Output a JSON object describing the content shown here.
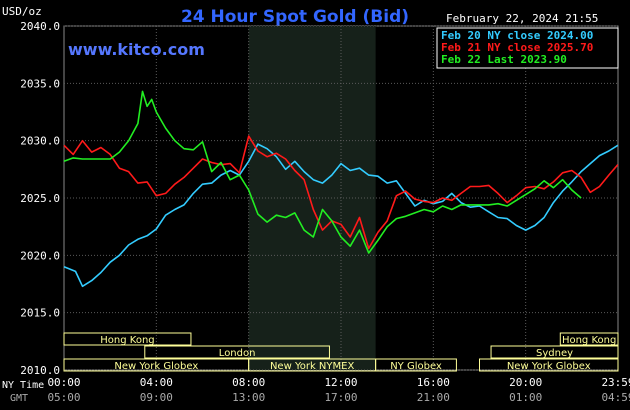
{
  "header": {
    "unit": "USD/oz",
    "title": "24 Hour Spot Gold (Bid)",
    "date": "February 22, 2024 21:55",
    "watermark": "www.kitco.com"
  },
  "legend": [
    {
      "text": "Feb 20 NY close 2024.00",
      "color": "#33ccff"
    },
    {
      "text": "Feb 21 NY close 2025.70",
      "color": "#ff1a1a"
    },
    {
      "text": "Feb 22 Last 2023.90",
      "color": "#22ee22"
    }
  ],
  "bottom_labels": {
    "ny_time": "NY Time",
    "gmt": "GMT"
  },
  "sessions": [
    {
      "label": "Hong Kong",
      "start": 0,
      "end": 5.5,
      "row": 0
    },
    {
      "label": "Hong Kong",
      "start": 21.5,
      "end": 24,
      "row": 0
    },
    {
      "label": "London",
      "start": 3.5,
      "end": 11.5,
      "row": 1
    },
    {
      "label": "Sydney",
      "start": 18.5,
      "end": 24,
      "row": 1
    },
    {
      "label": "New York Globex",
      "start": 0,
      "end": 8,
      "row": 2
    },
    {
      "label": "New York NYMEX",
      "start": 8,
      "end": 13.5,
      "row": 2
    },
    {
      "label": "NY Globex",
      "start": 13.5,
      "end": 17,
      "row": 2
    },
    {
      "label": "New York Globex",
      "start": 18,
      "end": 24,
      "row": 2
    }
  ],
  "chart_data": {
    "type": "line",
    "title": "24 Hour Spot Gold (Bid)",
    "ylabel": "USD/oz",
    "ylim": [
      2010,
      2040
    ],
    "xlim": [
      0,
      24
    ],
    "yticks": [
      2040,
      2035,
      2030,
      2025,
      2020,
      2015,
      2010
    ],
    "ytick_labels": [
      "2040.0",
      "2035.0",
      "2030.0",
      "2025.0",
      "2020.0",
      "2015.0",
      "2010.0"
    ],
    "xticks": [
      0,
      4,
      8,
      12,
      16,
      20,
      24
    ],
    "xtick_labels": [
      "00:00",
      "04:00",
      "08:00",
      "12:00",
      "16:00",
      "20:00",
      "23:59"
    ],
    "gmt_tick_labels": [
      "05:00",
      "09:00",
      "13:00",
      "17:00",
      "21:00",
      "01:00",
      "04:59"
    ],
    "shaded_range": [
      8,
      13.5
    ],
    "grid": true,
    "legend_position": "top-right",
    "series": [
      {
        "name": "Feb 20 NY close 2024.00",
        "color": "#33ccff",
        "x": [
          0,
          0.5,
          0.8,
          1.2,
          1.6,
          2.0,
          2.4,
          2.8,
          3.2,
          3.6,
          4.0,
          4.4,
          4.8,
          5.2,
          5.6,
          6.0,
          6.4,
          6.8,
          7.2,
          7.6,
          8.0,
          8.4,
          8.8,
          9.2,
          9.6,
          10.0,
          10.4,
          10.8,
          11.2,
          11.6,
          12.0,
          12.4,
          12.8,
          13.2,
          13.6,
          14.0,
          14.4,
          14.8,
          15.2,
          15.6,
          16.0,
          16.4,
          16.8,
          17.2,
          17.6,
          18.0,
          18.4,
          18.8,
          19.2,
          19.6,
          20.0,
          20.4,
          20.8,
          21.2,
          21.6,
          22.0,
          22.4,
          22.8,
          23.2,
          23.6,
          23.99
        ],
        "y": [
          2019.0,
          2018.6,
          2017.3,
          2017.8,
          2018.5,
          2019.4,
          2020.0,
          2020.9,
          2021.4,
          2021.7,
          2022.3,
          2023.5,
          2024.0,
          2024.4,
          2025.4,
          2026.2,
          2026.3,
          2027.0,
          2027.4,
          2027.0,
          2028.2,
          2029.7,
          2029.3,
          2028.6,
          2027.5,
          2028.2,
          2027.3,
          2026.6,
          2026.3,
          2027.0,
          2028.0,
          2027.4,
          2027.6,
          2027.0,
          2026.9,
          2026.3,
          2026.5,
          2025.4,
          2024.3,
          2024.8,
          2024.5,
          2024.7,
          2025.4,
          2024.6,
          2024.2,
          2024.3,
          2023.8,
          2023.3,
          2023.2,
          2022.6,
          2022.2,
          2022.6,
          2023.3,
          2024.6,
          2025.6,
          2026.4,
          2027.3,
          2028.0,
          2028.7,
          2029.1,
          2029.6
        ]
      },
      {
        "name": "Feb 21 NY close 2025.70",
        "color": "#ff1a1a",
        "x": [
          0,
          0.4,
          0.8,
          1.2,
          1.6,
          2.0,
          2.4,
          2.8,
          3.2,
          3.6,
          4.0,
          4.4,
          4.8,
          5.2,
          5.6,
          6.0,
          6.4,
          6.8,
          7.2,
          7.6,
          8.0,
          8.4,
          8.8,
          9.2,
          9.6,
          10.0,
          10.4,
          10.8,
          11.2,
          11.6,
          12.0,
          12.4,
          12.8,
          13.2,
          13.6,
          14.0,
          14.4,
          14.8,
          15.2,
          15.6,
          16.0,
          16.4,
          16.8,
          17.2,
          17.6,
          18.0,
          18.4,
          18.8,
          19.2,
          19.6,
          20.0,
          20.4,
          20.8,
          21.2,
          21.6,
          22.0,
          22.4,
          22.8,
          23.2,
          23.6,
          23.99
        ],
        "y": [
          2029.6,
          2028.8,
          2030.0,
          2029.0,
          2029.4,
          2028.8,
          2027.6,
          2027.3,
          2026.3,
          2026.4,
          2025.2,
          2025.4,
          2026.2,
          2026.8,
          2027.6,
          2028.4,
          2028.1,
          2027.9,
          2028.0,
          2027.2,
          2030.4,
          2029.1,
          2028.6,
          2028.9,
          2028.4,
          2027.4,
          2026.6,
          2024.0,
          2022.2,
          2023.0,
          2022.7,
          2021.6,
          2023.3,
          2020.6,
          2022.0,
          2023.0,
          2025.2,
          2025.6,
          2024.9,
          2024.7,
          2024.6,
          2025.0,
          2024.8,
          2025.4,
          2026.0,
          2026.0,
          2026.1,
          2025.4,
          2024.6,
          2025.2,
          2025.9,
          2026.0,
          2025.8,
          2026.4,
          2027.2,
          2027.4,
          2026.8,
          2025.5,
          2026.0,
          2027.0,
          2027.9
        ]
      },
      {
        "name": "Feb 22 Last 2023.90",
        "color": "#22ee22",
        "x": [
          0,
          0.4,
          0.8,
          1.2,
          1.6,
          2.0,
          2.4,
          2.8,
          3.2,
          3.4,
          3.6,
          3.8,
          4.0,
          4.4,
          4.8,
          5.2,
          5.6,
          6.0,
          6.4,
          6.8,
          7.2,
          7.6,
          8.0,
          8.4,
          8.8,
          9.2,
          9.6,
          10.0,
          10.4,
          10.8,
          11.2,
          11.6,
          12.0,
          12.4,
          12.8,
          13.2,
          13.6,
          14.0,
          14.4,
          14.8,
          15.2,
          15.6,
          16.0,
          16.4,
          16.8,
          17.2,
          17.6,
          18.0,
          18.4,
          18.8,
          19.2,
          19.6,
          20.0,
          20.4,
          20.8,
          21.2,
          21.6,
          22.0,
          22.4
        ],
        "y": [
          2028.2,
          2028.5,
          2028.4,
          2028.4,
          2028.4,
          2028.4,
          2029.0,
          2030.0,
          2031.5,
          2034.3,
          2033.0,
          2033.6,
          2032.5,
          2031.1,
          2030.0,
          2029.3,
          2029.2,
          2029.9,
          2027.3,
          2028.1,
          2026.6,
          2027.0,
          2025.7,
          2023.6,
          2022.9,
          2023.5,
          2023.3,
          2023.7,
          2022.2,
          2021.6,
          2024.0,
          2023.0,
          2021.6,
          2020.8,
          2022.2,
          2020.2,
          2021.3,
          2022.5,
          2023.2,
          2023.4,
          2023.7,
          2024.0,
          2023.8,
          2024.3,
          2024.0,
          2024.4,
          2024.4,
          2024.4,
          2024.4,
          2024.5,
          2024.3,
          2024.8,
          2025.3,
          2025.8,
          2026.5,
          2025.9,
          2026.6,
          2025.7,
          2025.0
        ]
      }
    ]
  }
}
